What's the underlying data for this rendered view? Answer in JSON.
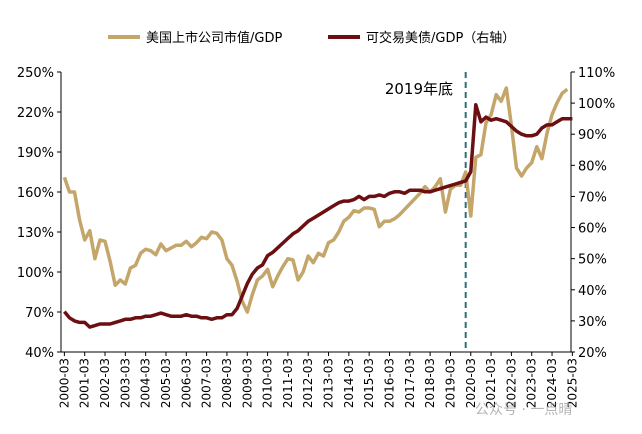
{
  "chart_data": {
    "type": "line",
    "legend_position": "top",
    "grid": false,
    "x_tick_labels": [
      "2000-03",
      "2001-03",
      "2002-03",
      "2003-03",
      "2004-03",
      "2005-03",
      "2006-03",
      "2007-03",
      "2008-03",
      "2009-03",
      "2010-03",
      "2011-03",
      "2012-03",
      "2013-03",
      "2014-03",
      "2015-03",
      "2016-03",
      "2017-03",
      "2018-03",
      "2019-03",
      "2020-03",
      "2021-03",
      "2022-03",
      "2023-03",
      "2024-03",
      "2025-03"
    ],
    "y_left": {
      "min": 40,
      "max": 250,
      "ticks": [
        "40%",
        "70%",
        "100%",
        "130%",
        "160%",
        "190%",
        "220%",
        "250%"
      ]
    },
    "y_right": {
      "min": 20,
      "max": 110,
      "ticks": [
        "20%",
        "30%",
        "40%",
        "50%",
        "60%",
        "70%",
        "80%",
        "90%",
        "100%",
        "110%"
      ]
    },
    "series": [
      {
        "name": "美国上市公司市值/GDP",
        "axis": "left",
        "color": "#C4A56A",
        "points": [
          [
            "2000-03",
            171
          ],
          [
            "2000-06",
            160
          ],
          [
            "2000-09",
            160
          ],
          [
            "2000-12",
            139
          ],
          [
            "2001-03",
            124
          ],
          [
            "2001-06",
            131
          ],
          [
            "2001-09",
            110
          ],
          [
            "2001-12",
            124
          ],
          [
            "2002-03",
            123
          ],
          [
            "2002-06",
            108
          ],
          [
            "2002-09",
            90
          ],
          [
            "2002-12",
            94
          ],
          [
            "2003-03",
            91
          ],
          [
            "2003-06",
            103
          ],
          [
            "2003-09",
            105
          ],
          [
            "2003-12",
            114
          ],
          [
            "2004-03",
            117
          ],
          [
            "2004-06",
            116
          ],
          [
            "2004-09",
            113
          ],
          [
            "2004-12",
            121
          ],
          [
            "2005-03",
            116
          ],
          [
            "2005-06",
            118
          ],
          [
            "2005-09",
            120
          ],
          [
            "2005-12",
            120
          ],
          [
            "2006-03",
            123
          ],
          [
            "2006-06",
            119
          ],
          [
            "2006-09",
            122
          ],
          [
            "2006-12",
            126
          ],
          [
            "2007-03",
            125
          ],
          [
            "2007-06",
            130
          ],
          [
            "2007-09",
            129
          ],
          [
            "2007-12",
            124
          ],
          [
            "2008-03",
            110
          ],
          [
            "2008-06",
            105
          ],
          [
            "2008-09",
            93
          ],
          [
            "2008-12",
            78
          ],
          [
            "2009-03",
            70
          ],
          [
            "2009-06",
            83
          ],
          [
            "2009-09",
            94
          ],
          [
            "2009-12",
            97
          ],
          [
            "2010-03",
            102
          ],
          [
            "2010-06",
            89
          ],
          [
            "2010-09",
            97
          ],
          [
            "2010-12",
            104
          ],
          [
            "2011-03",
            110
          ],
          [
            "2011-06",
            109
          ],
          [
            "2011-09",
            94
          ],
          [
            "2011-12",
            100
          ],
          [
            "2012-03",
            112
          ],
          [
            "2012-06",
            107
          ],
          [
            "2012-09",
            114
          ],
          [
            "2012-12",
            112
          ],
          [
            "2013-03",
            122
          ],
          [
            "2013-06",
            124
          ],
          [
            "2013-09",
            130
          ],
          [
            "2013-12",
            138
          ],
          [
            "2014-03",
            141
          ],
          [
            "2014-06",
            146
          ],
          [
            "2014-09",
            145
          ],
          [
            "2014-12",
            148
          ],
          [
            "2015-03",
            148
          ],
          [
            "2015-06",
            147
          ],
          [
            "2015-09",
            134
          ],
          [
            "2015-12",
            138
          ],
          [
            "2016-03",
            138
          ],
          [
            "2016-06",
            140
          ],
          [
            "2016-09",
            143
          ],
          [
            "2016-12",
            147
          ],
          [
            "2017-03",
            151
          ],
          [
            "2017-06",
            155
          ],
          [
            "2017-09",
            159
          ],
          [
            "2017-12",
            164
          ],
          [
            "2018-03",
            160
          ],
          [
            "2018-06",
            164
          ],
          [
            "2018-09",
            170
          ],
          [
            "2018-12",
            145
          ],
          [
            "2019-03",
            162
          ],
          [
            "2019-06",
            165
          ],
          [
            "2019-09",
            165
          ],
          [
            "2019-12",
            175
          ],
          [
            "2020-03",
            142
          ],
          [
            "2020-06",
            186
          ],
          [
            "2020-09",
            188
          ],
          [
            "2020-12",
            212
          ],
          [
            "2021-03",
            218
          ],
          [
            "2021-06",
            233
          ],
          [
            "2021-09",
            228
          ],
          [
            "2021-12",
            238
          ],
          [
            "2022-03",
            210
          ],
          [
            "2022-06",
            178
          ],
          [
            "2022-09",
            172
          ],
          [
            "2022-12",
            178
          ],
          [
            "2023-03",
            182
          ],
          [
            "2023-06",
            194
          ],
          [
            "2023-09",
            185
          ],
          [
            "2023-12",
            204
          ],
          [
            "2024-03",
            218
          ],
          [
            "2024-06",
            227
          ],
          [
            "2024-09",
            234
          ],
          [
            "2024-12",
            237
          ]
        ]
      },
      {
        "name": "可交易美债/GDP（右轴）",
        "axis": "right",
        "color": "#6B0F12",
        "points": [
          [
            "2000-03",
            33
          ],
          [
            "2000-06",
            31
          ],
          [
            "2000-09",
            30
          ],
          [
            "2000-12",
            29.5
          ],
          [
            "2001-03",
            29.5
          ],
          [
            "2001-06",
            28
          ],
          [
            "2001-09",
            28.5
          ],
          [
            "2001-12",
            29
          ],
          [
            "2002-03",
            29
          ],
          [
            "2002-06",
            29
          ],
          [
            "2002-09",
            29.5
          ],
          [
            "2002-12",
            30
          ],
          [
            "2003-03",
            30.5
          ],
          [
            "2003-06",
            30.5
          ],
          [
            "2003-09",
            31
          ],
          [
            "2003-12",
            31
          ],
          [
            "2004-03",
            31.5
          ],
          [
            "2004-06",
            31.5
          ],
          [
            "2004-09",
            32
          ],
          [
            "2004-12",
            32.5
          ],
          [
            "2005-03",
            32
          ],
          [
            "2005-06",
            31.5
          ],
          [
            "2005-09",
            31.5
          ],
          [
            "2005-12",
            31.5
          ],
          [
            "2006-03",
            32
          ],
          [
            "2006-06",
            31.5
          ],
          [
            "2006-09",
            31.5
          ],
          [
            "2006-12",
            31
          ],
          [
            "2007-03",
            31
          ],
          [
            "2007-06",
            30.5
          ],
          [
            "2007-09",
            31
          ],
          [
            "2007-12",
            31
          ],
          [
            "2008-03",
            32
          ],
          [
            "2008-06",
            32
          ],
          [
            "2008-09",
            34
          ],
          [
            "2008-12",
            38
          ],
          [
            "2009-03",
            42
          ],
          [
            "2009-06",
            45
          ],
          [
            "2009-09",
            47
          ],
          [
            "2009-12",
            48
          ],
          [
            "2010-03",
            51
          ],
          [
            "2010-06",
            52
          ],
          [
            "2010-09",
            53.5
          ],
          [
            "2010-12",
            55
          ],
          [
            "2011-03",
            56.5
          ],
          [
            "2011-06",
            58
          ],
          [
            "2011-09",
            59
          ],
          [
            "2011-12",
            60.5
          ],
          [
            "2012-03",
            62
          ],
          [
            "2012-06",
            63
          ],
          [
            "2012-09",
            64
          ],
          [
            "2012-12",
            65
          ],
          [
            "2013-03",
            66
          ],
          [
            "2013-06",
            67
          ],
          [
            "2013-09",
            68
          ],
          [
            "2013-12",
            68.5
          ],
          [
            "2014-03",
            68.5
          ],
          [
            "2014-06",
            69
          ],
          [
            "2014-09",
            70
          ],
          [
            "2014-12",
            69
          ],
          [
            "2015-03",
            70
          ],
          [
            "2015-06",
            70
          ],
          [
            "2015-09",
            70.5
          ],
          [
            "2015-12",
            70
          ],
          [
            "2016-03",
            71
          ],
          [
            "2016-06",
            71.5
          ],
          [
            "2016-09",
            71.5
          ],
          [
            "2016-12",
            71
          ],
          [
            "2017-03",
            72
          ],
          [
            "2017-06",
            72
          ],
          [
            "2017-09",
            72
          ],
          [
            "2017-12",
            71.5
          ],
          [
            "2018-03",
            71.5
          ],
          [
            "2018-06",
            72
          ],
          [
            "2018-09",
            72.5
          ],
          [
            "2018-12",
            73
          ],
          [
            "2019-03",
            73.5
          ],
          [
            "2019-06",
            74
          ],
          [
            "2019-09",
            74.5
          ],
          [
            "2019-12",
            75
          ],
          [
            "2020-03",
            78
          ],
          [
            "2020-06",
            99.5
          ],
          [
            "2020-09",
            94
          ],
          [
            "2020-12",
            95.5
          ],
          [
            "2021-03",
            94.5
          ],
          [
            "2021-06",
            95
          ],
          [
            "2021-09",
            94.5
          ],
          [
            "2021-12",
            94
          ],
          [
            "2022-03",
            92.5
          ],
          [
            "2022-06",
            91
          ],
          [
            "2022-09",
            90
          ],
          [
            "2022-12",
            89.5
          ],
          [
            "2023-03",
            89.5
          ],
          [
            "2023-06",
            90
          ],
          [
            "2023-09",
            92
          ],
          [
            "2023-12",
            93
          ],
          [
            "2024-03",
            93
          ],
          [
            "2024-06",
            94
          ],
          [
            "2024-09",
            95
          ],
          [
            "2024-12",
            95
          ],
          [
            "2025-03",
            95
          ]
        ]
      }
    ],
    "annotations": [
      {
        "text": "2019年底",
        "x": "2019-12",
        "style": "dashed-vertical-line",
        "color": "#2E6F77"
      }
    ]
  },
  "watermark": {
    "text": "公众号 · 一点晴"
  }
}
